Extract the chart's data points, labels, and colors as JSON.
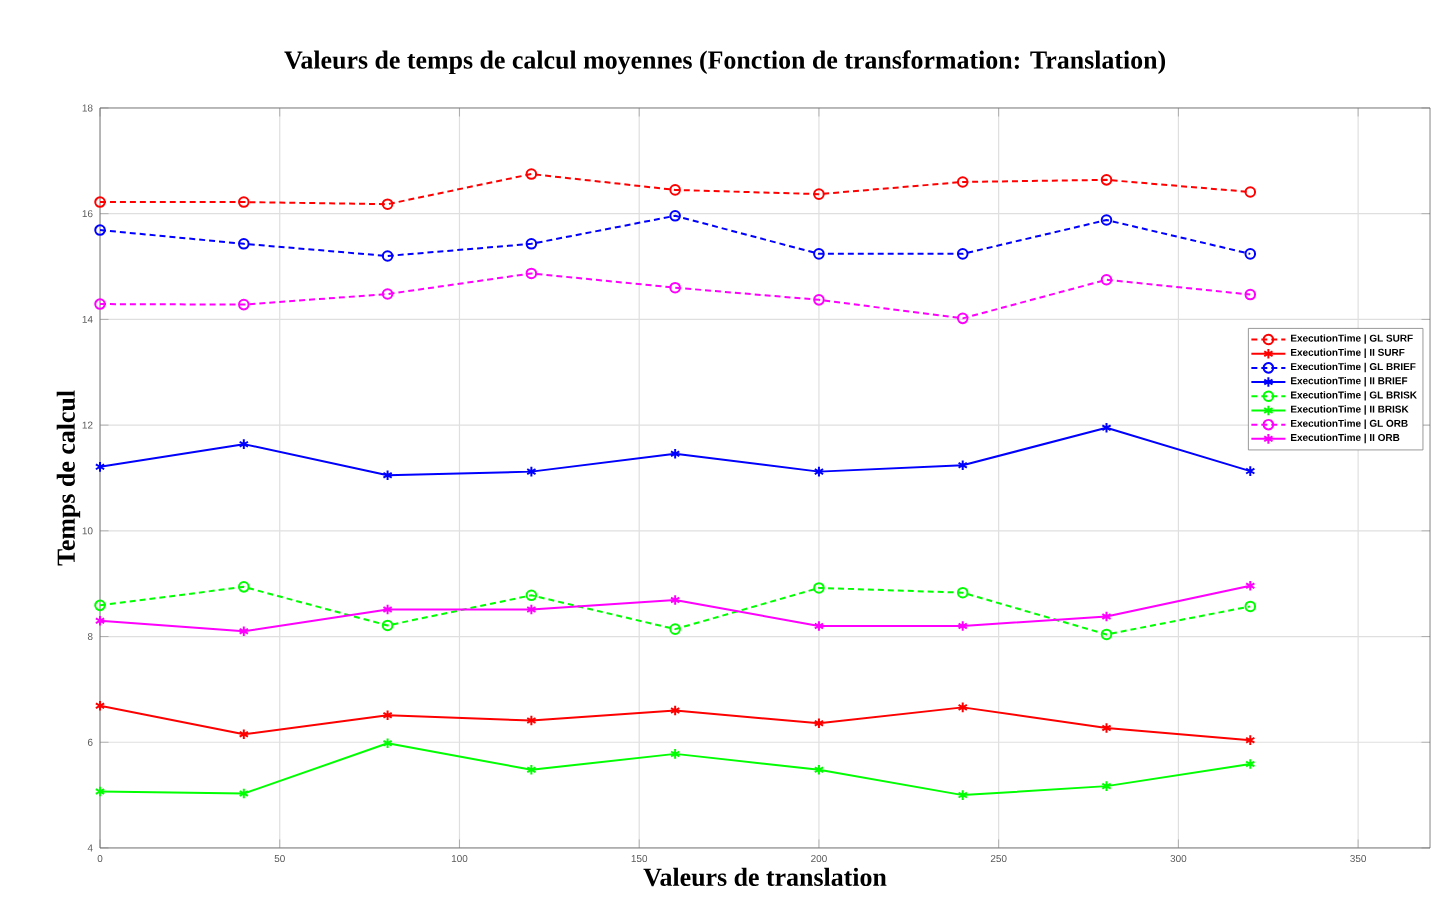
{
  "chart_data": {
    "type": "line",
    "title": "Valeurs de temps de calcul moyennes (Fonction de transformation: Translation)",
    "xlabel": "Valeurs de translation",
    "ylabel": "Temps de calcul",
    "x": [
      0,
      40,
      80,
      120,
      160,
      200,
      240,
      280,
      320
    ],
    "xlim": [
      0,
      370
    ],
    "xticks": [
      0,
      50,
      100,
      150,
      200,
      250,
      300,
      350
    ],
    "ylim": [
      4,
      18
    ],
    "yticks": [
      4,
      6,
      8,
      10,
      12,
      14,
      16,
      18
    ],
    "grid": true,
    "legend": "right",
    "series": [
      {
        "name": "ExecutionTime | GL SURF",
        "color": "#ff0000",
        "marker": "circle",
        "line_style": "dashed",
        "values": [
          16.22,
          16.22,
          16.18,
          16.75,
          16.45,
          16.37,
          16.6,
          16.64,
          16.41
        ]
      },
      {
        "name": "ExecutionTime | II SURF",
        "color": "#ff0000",
        "marker": "cross",
        "line_style": "solid",
        "values": [
          6.69,
          6.15,
          6.51,
          6.41,
          6.6,
          6.36,
          6.66,
          6.27,
          6.04
        ]
      },
      {
        "name": "ExecutionTime | GL BRIEF",
        "color": "#0000ff",
        "marker": "circle",
        "line_style": "dashed",
        "values": [
          15.69,
          15.43,
          15.2,
          15.43,
          15.96,
          15.24,
          15.24,
          15.88,
          15.24
        ]
      },
      {
        "name": "ExecutionTime | II BRIEF",
        "color": "#0000ff",
        "marker": "cross",
        "line_style": "solid",
        "values": [
          11.21,
          11.64,
          11.05,
          11.12,
          11.46,
          11.12,
          11.24,
          11.95,
          11.13
        ]
      },
      {
        "name": "ExecutionTime | GL BRISK",
        "color": "#00ff00",
        "marker": "circle",
        "line_style": "dashed",
        "values": [
          8.59,
          8.94,
          8.21,
          8.78,
          8.14,
          8.92,
          8.83,
          8.04,
          8.57
        ]
      },
      {
        "name": "ExecutionTime | II BRISK",
        "color": "#00ff00",
        "marker": "cross",
        "line_style": "solid",
        "values": [
          5.07,
          5.03,
          5.98,
          5.48,
          5.78,
          5.48,
          5.0,
          5.17,
          5.59
        ]
      },
      {
        "name": "ExecutionTime | GL ORB",
        "color": "#ff00ff",
        "marker": "circle",
        "line_style": "dashed",
        "values": [
          14.29,
          14.28,
          14.48,
          14.87,
          14.6,
          14.37,
          14.02,
          14.75,
          14.47
        ]
      },
      {
        "name": "ExecutionTime | II ORB",
        "color": "#ff00ff",
        "marker": "cross",
        "line_style": "solid",
        "values": [
          8.3,
          8.1,
          8.51,
          8.51,
          8.69,
          8.2,
          8.2,
          8.38,
          8.96
        ]
      }
    ]
  }
}
